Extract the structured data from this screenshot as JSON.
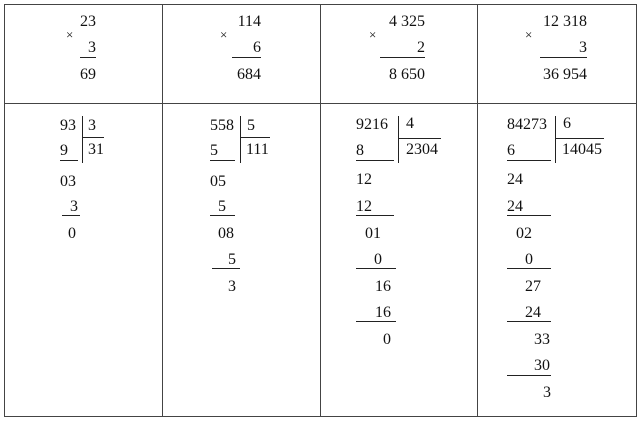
{
  "multiplication": [
    {
      "a": "23",
      "b": "3",
      "result": "69"
    },
    {
      "a": "114",
      "b": "6",
      "result": "684"
    },
    {
      "a": "4 325",
      "b": "2",
      "result": "8 650"
    },
    {
      "a": "12 318",
      "b": "3",
      "result": "36 954"
    }
  ],
  "times_sign": "×",
  "division": [
    {
      "dividend": "93",
      "divisor": "3",
      "quotient": "31",
      "steps": [
        "9",
        "03",
        "3",
        "0"
      ]
    },
    {
      "dividend": "558",
      "divisor": "5",
      "quotient": "111",
      "steps": [
        "5",
        "05",
        "5",
        "08",
        "5",
        "3"
      ]
    },
    {
      "dividend": "9216",
      "divisor": "4",
      "quotient": "2304",
      "steps": [
        "8",
        "12",
        "12",
        "01",
        "0",
        "16",
        "16",
        "0"
      ]
    },
    {
      "dividend": "84273",
      "divisor": "6",
      "quotient": "14045",
      "steps": [
        "6",
        "24",
        "24",
        "02",
        "0",
        "27",
        "24",
        "33",
        "30",
        "3"
      ]
    }
  ]
}
